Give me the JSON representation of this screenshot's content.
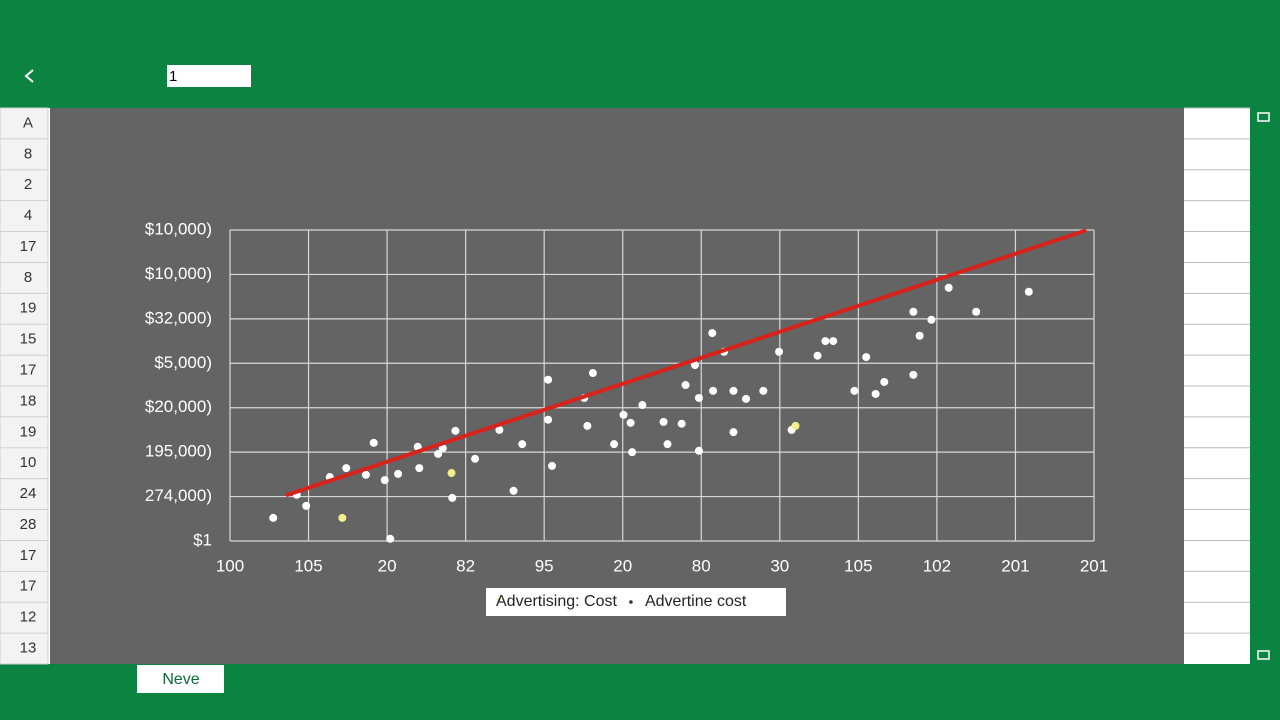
{
  "toolbar": {
    "input_value": "1"
  },
  "rows": [
    "A",
    "8",
    "2",
    "4",
    "17",
    "8",
    "19",
    "15",
    "17",
    "18",
    "19",
    "10",
    "24",
    "28",
    "17",
    "17",
    "12",
    "13"
  ],
  "footer": {
    "button": "Neve"
  },
  "chart_data": {
    "type": "scatter",
    "xlim": [
      0,
      11
    ],
    "ylim": [
      0,
      7
    ],
    "grid": true,
    "xticks": [
      {
        "value": 0,
        "label": "100"
      },
      {
        "value": 1,
        "label": "105"
      },
      {
        "value": 2,
        "label": "20"
      },
      {
        "value": 3,
        "label": "82"
      },
      {
        "value": 4,
        "label": "95"
      },
      {
        "value": 5,
        "label": "20"
      },
      {
        "value": 6,
        "label": "80"
      },
      {
        "value": 7,
        "label": "30"
      },
      {
        "value": 8,
        "label": "105"
      },
      {
        "value": 9,
        "label": "102"
      },
      {
        "value": 10,
        "label": "201"
      },
      {
        "value": 11,
        "label": "201"
      }
    ],
    "yticks": [
      {
        "value": 0,
        "label": "$1"
      },
      {
        "value": 1,
        "label": "274,000)"
      },
      {
        "value": 2,
        "label": "195,000)"
      },
      {
        "value": 3,
        "label": "$20,000)"
      },
      {
        "value": 4,
        "label": "$5,000)"
      },
      {
        "value": 5,
        "label": "$32,000)"
      },
      {
        "value": 6,
        "label": "$10,000)"
      },
      {
        "value": 7,
        "label": "$10,000)"
      }
    ],
    "series": [
      {
        "name": "Advertising: Cost",
        "color": "#ffffff",
        "x": [
          0.55,
          0.85,
          0.97,
          1.27,
          1.48,
          1.73,
          1.83,
          1.97,
          2.04,
          2.14,
          2.39,
          2.41,
          2.65,
          2.71,
          2.87,
          2.83,
          3.12,
          3.43,
          3.61,
          3.72,
          4.05,
          4.05,
          4.1,
          4.51,
          4.55,
          4.62,
          4.89,
          5.01,
          5.1,
          5.12,
          5.25,
          5.52,
          5.57,
          5.75,
          5.8,
          5.92,
          5.97,
          5.97,
          6.14,
          6.15,
          6.29,
          6.41,
          6.41,
          6.57,
          6.79,
          6.99,
          7.15,
          7.48,
          7.58,
          7.68,
          7.95,
          8.1,
          8.22,
          8.33,
          8.7,
          8.7,
          8.78,
          8.93,
          9.15,
          9.5,
          10.17,
          2.82,
          1.43,
          7.2
        ],
        "values": [
          0.52,
          1.04,
          0.79,
          1.44,
          1.64,
          1.49,
          2.21,
          1.37,
          0.05,
          1.51,
          2.12,
          1.64,
          1.96,
          2.09,
          2.48,
          0.97,
          1.85,
          2.5,
          1.13,
          2.18,
          3.63,
          2.73,
          1.69,
          3.22,
          2.59,
          3.78,
          2.18,
          2.84,
          2.66,
          2.0,
          3.06,
          2.68,
          2.18,
          2.64,
          3.51,
          3.96,
          3.22,
          2.03,
          4.68,
          3.38,
          4.26,
          3.38,
          2.45,
          3.2,
          3.38,
          4.26,
          2.5,
          4.17,
          4.5,
          4.5,
          3.38,
          4.14,
          3.31,
          3.58,
          5.16,
          3.74,
          4.62,
          4.98,
          5.7,
          5.16,
          5.61,
          1.53,
          0.52,
          2.59
        ],
        "highlight_color": "#f3f08a",
        "highlight_from": 61
      },
      {
        "name": "Advertine cost",
        "type": "line",
        "color": "#d8221c",
        "x": [
          0.73,
          10.88
        ],
        "values": [
          1.04,
          6.98
        ]
      }
    ]
  }
}
